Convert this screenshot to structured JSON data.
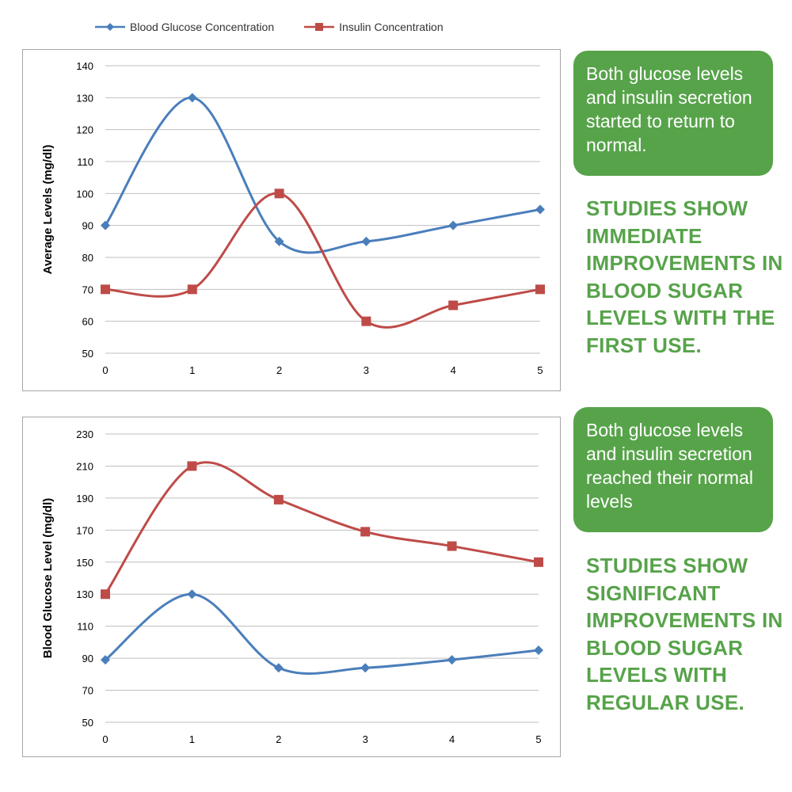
{
  "legend": {
    "glucose_label": "Blood Glucose Concentration",
    "insulin_label": "Insulin Concentration"
  },
  "colors": {
    "glucose": "#4a7ebb",
    "insulin": "#be4b48",
    "grid": "#bfbfbf",
    "green": "#57a34a"
  },
  "notes": {
    "top": "Both glucose levels and insulin secretion started to return to normal.",
    "bottom": "Both glucose levels and insulin secretion reached their normal levels"
  },
  "claims": {
    "top": "STUDIES SHOW IMMEDIATE IMPROVEMENTS IN BLOOD SUGAR LEVELS WITH THE FIRST USE.",
    "bottom": "STUDIES SHOW SIGNIFICANT IMPROVEMENTS IN BLOOD SUGAR LEVELS WITH REGULAR USE."
  },
  "chart_data": [
    {
      "type": "line",
      "ylabel": "Average Levels (mg/dl)",
      "xlabel": "",
      "x": [
        0,
        1,
        2,
        3,
        4,
        5
      ],
      "ylim": [
        50,
        140
      ],
      "yticks": [
        50,
        60,
        70,
        80,
        90,
        100,
        110,
        120,
        130,
        140
      ],
      "grid": true,
      "legend": "top",
      "series": [
        {
          "name": "Blood Glucose Concentration",
          "values": [
            90,
            130,
            85,
            85,
            90,
            95
          ],
          "color": "#4a7ebb",
          "marker": "diamond"
        },
        {
          "name": "Insulin Concentration",
          "values": [
            70,
            70,
            100,
            60,
            65,
            70
          ],
          "color": "#be4b48",
          "marker": "square"
        }
      ]
    },
    {
      "type": "line",
      "ylabel": "Blood Glucose Level (mg/dl)",
      "xlabel": "",
      "x": [
        0,
        1,
        2,
        3,
        4,
        5
      ],
      "ylim": [
        50,
        230
      ],
      "yticks": [
        50,
        70,
        90,
        110,
        130,
        150,
        170,
        190,
        210,
        230
      ],
      "grid": true,
      "series": [
        {
          "name": "Insulin Concentration",
          "values": [
            130,
            210,
            189,
            169,
            160,
            150
          ],
          "color": "#be4b48",
          "marker": "square"
        },
        {
          "name": "Blood Glucose Concentration",
          "values": [
            89,
            130,
            84,
            84,
            89,
            95
          ],
          "color": "#4a7ebb",
          "marker": "diamond"
        }
      ]
    }
  ]
}
